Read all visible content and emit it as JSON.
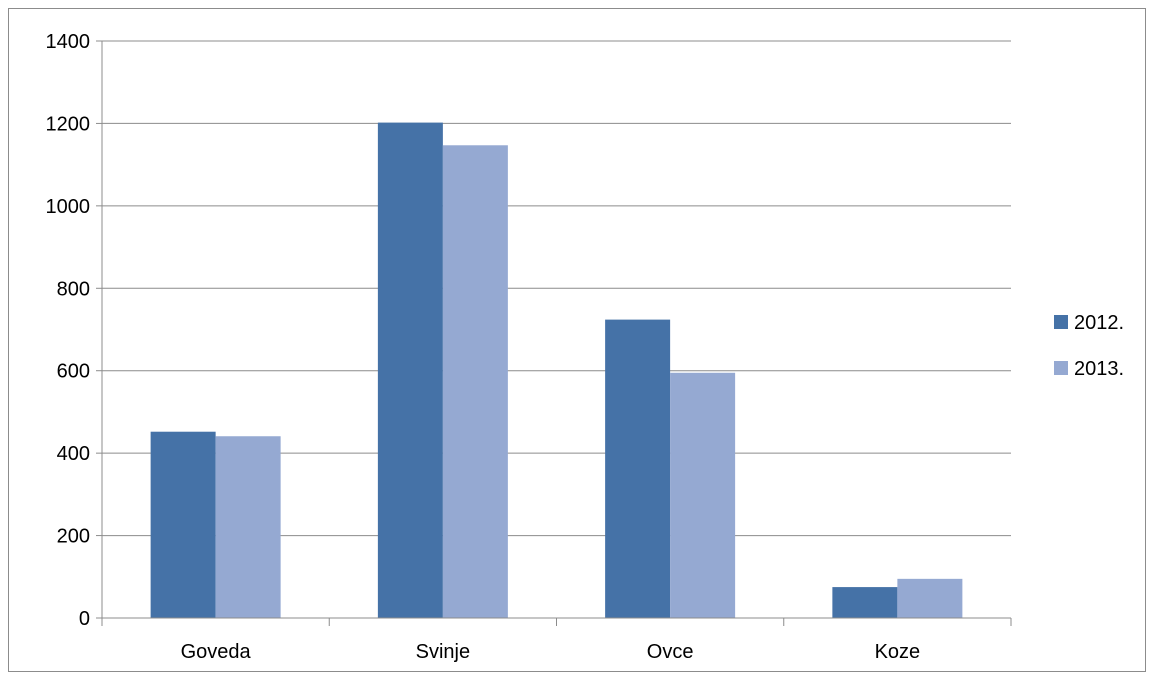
{
  "chart_data": {
    "type": "bar",
    "title": "",
    "xlabel": "",
    "ylabel": "",
    "categories": [
      "Goveda",
      "Svinje",
      "Ovce",
      "Koze"
    ],
    "series": [
      {
        "name": "2012.",
        "color": "#4572A7",
        "values": [
          452,
          1202,
          724,
          75
        ]
      },
      {
        "name": "2013.",
        "color": "#95A9D2",
        "values": [
          441,
          1147,
          595,
          95
        ]
      }
    ],
    "ylim": [
      0,
      1400
    ],
    "yticks": [
      0,
      200,
      400,
      600,
      800,
      1000,
      1200,
      1400
    ],
    "grid": true,
    "legend_position": "right"
  }
}
